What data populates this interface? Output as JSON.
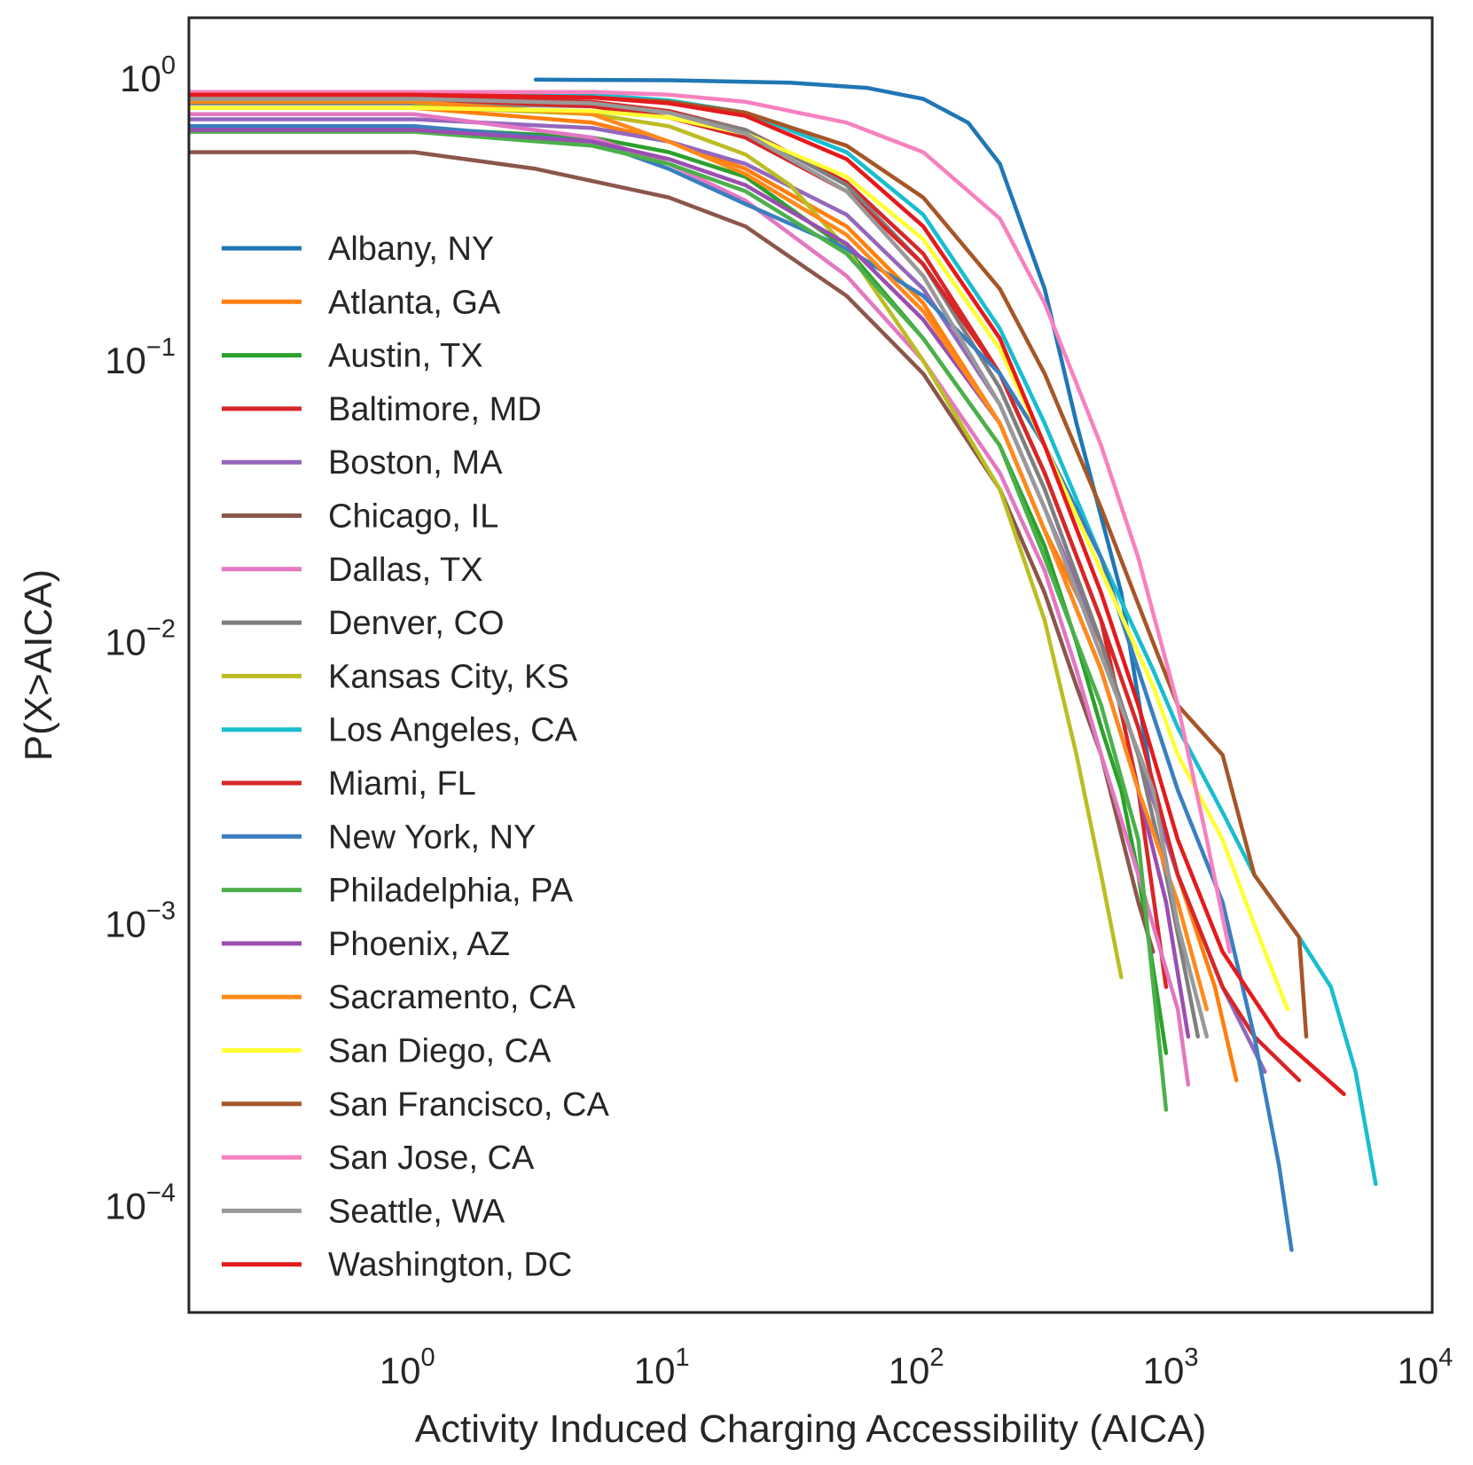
{
  "chart_data": {
    "type": "line",
    "title": "",
    "xlabel": "Activity Induced Charging Accessibility (AICA)",
    "ylabel": "P(X>AICA)",
    "xscale": "log",
    "yscale": "log",
    "xlim": [
      0.13,
      10000
    ],
    "ylim": [
      4.2e-05,
      1.65
    ],
    "xticks": [
      {
        "value": 1,
        "base": "10",
        "exp": "0"
      },
      {
        "value": 10,
        "base": "10",
        "exp": "1"
      },
      {
        "value": 100,
        "base": "10",
        "exp": "2"
      },
      {
        "value": 1000,
        "base": "10",
        "exp": "3"
      },
      {
        "value": 10000,
        "base": "10",
        "exp": "4"
      }
    ],
    "yticks": [
      {
        "value": 1,
        "base": "10",
        "exp": "0"
      },
      {
        "value": 0.1,
        "base": "10",
        "exp": "−1"
      },
      {
        "value": 0.01,
        "base": "10",
        "exp": "−2"
      },
      {
        "value": 0.001,
        "base": "10",
        "exp": "−3"
      },
      {
        "value": 0.0001,
        "base": "10",
        "exp": "−4"
      }
    ],
    "grid": false,
    "legend_position": "center-left",
    "series": [
      {
        "name": "Albany, NY",
        "color": "#1f77b4",
        "x": [
          3,
          10,
          30,
          60,
          100,
          150,
          200,
          300,
          400,
          600,
          800
        ],
        "y": [
          0.995,
          0.99,
          0.97,
          0.93,
          0.85,
          0.7,
          0.5,
          0.18,
          0.06,
          0.015,
          0.003
        ]
      },
      {
        "name": "Atlanta, GA",
        "color": "#ff7f0e",
        "x": [
          0.13,
          1,
          5,
          10,
          20,
          50,
          100,
          200,
          300,
          500,
          700,
          1000,
          1400,
          1700
        ],
        "y": [
          0.79,
          0.79,
          0.7,
          0.6,
          0.48,
          0.3,
          0.16,
          0.06,
          0.025,
          0.01,
          0.004,
          0.0015,
          0.0006,
          0.00028
        ]
      },
      {
        "name": "Austin, TX",
        "color": "#2ca02c",
        "x": [
          0.13,
          1,
          5,
          10,
          20,
          50,
          100,
          200,
          300,
          400,
          500,
          600,
          700,
          800,
          900
        ],
        "y": [
          0.67,
          0.67,
          0.62,
          0.55,
          0.45,
          0.25,
          0.12,
          0.05,
          0.022,
          0.01,
          0.005,
          0.003,
          0.0015,
          0.0007,
          0.00035
        ]
      },
      {
        "name": "Baltimore, MD",
        "color": "#d62728",
        "x": [
          0.13,
          1,
          5,
          10,
          20,
          50,
          100,
          200,
          300,
          500,
          700,
          900
        ],
        "y": [
          0.87,
          0.87,
          0.83,
          0.77,
          0.66,
          0.43,
          0.24,
          0.09,
          0.04,
          0.012,
          0.003,
          0.0006
        ]
      },
      {
        "name": "Boston, MA",
        "color": "#9467bd",
        "x": [
          0.13,
          1,
          5,
          10,
          20,
          50,
          100,
          200,
          300,
          500,
          700,
          1000,
          1500,
          2200
        ],
        "y": [
          0.72,
          0.72,
          0.67,
          0.6,
          0.5,
          0.33,
          0.18,
          0.07,
          0.03,
          0.01,
          0.004,
          0.0015,
          0.0006,
          0.0003
        ]
      },
      {
        "name": "Chicago, IL",
        "color": "#8c564b",
        "x": [
          0.13,
          1,
          3,
          10,
          20,
          50,
          100,
          200,
          300,
          400,
          500,
          700,
          800
        ],
        "y": [
          0.55,
          0.55,
          0.48,
          0.38,
          0.3,
          0.17,
          0.09,
          0.035,
          0.015,
          0.007,
          0.004,
          0.0012,
          0.0008
        ]
      },
      {
        "name": "Dallas, TX",
        "color": "#e377c2",
        "x": [
          0.13,
          1,
          5,
          10,
          20,
          50,
          100,
          200,
          300,
          400,
          500,
          700,
          1000,
          1100
        ],
        "y": [
          0.75,
          0.75,
          0.62,
          0.5,
          0.37,
          0.2,
          0.1,
          0.04,
          0.018,
          0.008,
          0.004,
          0.0015,
          0.0005,
          0.00027
        ]
      },
      {
        "name": "Denver, CO",
        "color": "#7f7f7f",
        "x": [
          0.13,
          1,
          5,
          10,
          20,
          50,
          100,
          200,
          300,
          500,
          700,
          900,
          1100,
          1200
        ],
        "y": [
          0.82,
          0.82,
          0.8,
          0.76,
          0.66,
          0.42,
          0.22,
          0.08,
          0.035,
          0.01,
          0.004,
          0.0015,
          0.0006,
          0.0004
        ]
      },
      {
        "name": "Kansas City, KS",
        "color": "#bcbd22",
        "x": [
          1,
          5,
          10,
          20,
          30,
          50,
          100,
          200,
          300,
          400,
          500,
          600
        ],
        "y": [
          0.8,
          0.75,
          0.68,
          0.54,
          0.42,
          0.25,
          0.1,
          0.035,
          0.012,
          0.004,
          0.0015,
          0.00065
        ]
      },
      {
        "name": "Los Angeles, CA",
        "color": "#17becf",
        "x": [
          0.13,
          1,
          5,
          10,
          20,
          50,
          100,
          200,
          300,
          500,
          800,
          1000,
          1500,
          2000,
          3000,
          4000,
          5000,
          6000
        ],
        "y": [
          0.9,
          0.9,
          0.88,
          0.84,
          0.76,
          0.55,
          0.33,
          0.13,
          0.06,
          0.02,
          0.008,
          0.005,
          0.0025,
          0.0015,
          0.0009,
          0.0006,
          0.0003,
          0.00012
        ]
      },
      {
        "name": "Miami, FL",
        "color": "#d62728",
        "x": [
          0.13,
          1,
          5,
          10,
          20,
          50,
          100,
          200,
          300,
          500,
          700,
          1000,
          1500,
          2000,
          3000
        ],
        "y": [
          0.85,
          0.85,
          0.8,
          0.73,
          0.62,
          0.4,
          0.22,
          0.09,
          0.04,
          0.012,
          0.005,
          0.0015,
          0.0006,
          0.0004,
          0.00028
        ]
      },
      {
        "name": "New York, NY",
        "color": "#3a7fbf",
        "x": [
          0.13,
          1,
          5,
          10,
          20,
          50,
          100,
          200,
          300,
          500,
          700,
          1000,
          1500,
          2000,
          2500,
          2800
        ],
        "y": [
          0.68,
          0.68,
          0.6,
          0.48,
          0.36,
          0.25,
          0.17,
          0.09,
          0.05,
          0.02,
          0.008,
          0.003,
          0.0012,
          0.0004,
          0.00014,
          7e-05
        ]
      },
      {
        "name": "Philadelphia, PA",
        "color": "#4bb04b",
        "x": [
          0.13,
          1,
          5,
          10,
          20,
          50,
          100,
          200,
          300,
          500,
          700,
          900
        ],
        "y": [
          0.65,
          0.65,
          0.58,
          0.5,
          0.4,
          0.24,
          0.12,
          0.05,
          0.02,
          0.006,
          0.002,
          0.00022
        ]
      },
      {
        "name": "Phoenix, AZ",
        "color": "#9a4fb0",
        "x": [
          0.13,
          1,
          5,
          10,
          20,
          50,
          100,
          200,
          300,
          500,
          700,
          900,
          1100
        ],
        "y": [
          0.66,
          0.66,
          0.6,
          0.52,
          0.42,
          0.26,
          0.14,
          0.06,
          0.025,
          0.008,
          0.003,
          0.0012,
          0.0004
        ]
      },
      {
        "name": "Sacramento, CA",
        "color": "#ff8a1a",
        "x": [
          0.13,
          1,
          5,
          10,
          20,
          50,
          100,
          200,
          300,
          500,
          700,
          1000,
          1300
        ],
        "y": [
          0.83,
          0.83,
          0.75,
          0.6,
          0.46,
          0.28,
          0.15,
          0.06,
          0.025,
          0.008,
          0.003,
          0.0012,
          0.0005
        ]
      },
      {
        "name": "San Diego, CA",
        "color": "#ffff33",
        "x": [
          0.13,
          1,
          5,
          10,
          20,
          50,
          100,
          200,
          300,
          500,
          800,
          1000,
          1500,
          2000,
          2700
        ],
        "y": [
          0.79,
          0.79,
          0.77,
          0.73,
          0.64,
          0.45,
          0.27,
          0.11,
          0.05,
          0.018,
          0.007,
          0.004,
          0.002,
          0.001,
          0.0005
        ]
      },
      {
        "name": "San Francisco, CA",
        "color": "#a65628",
        "x": [
          0.13,
          1,
          5,
          10,
          20,
          50,
          100,
          200,
          300,
          500,
          800,
          1000,
          1500,
          2000,
          3000,
          3200
        ],
        "y": [
          0.88,
          0.88,
          0.86,
          0.83,
          0.76,
          0.58,
          0.38,
          0.18,
          0.09,
          0.03,
          0.01,
          0.006,
          0.004,
          0.0015,
          0.0009,
          0.0004
        ]
      },
      {
        "name": "San Jose, CA",
        "color": "#f781bf",
        "x": [
          0.13,
          1,
          5,
          10,
          20,
          50,
          100,
          200,
          300,
          500,
          700,
          1000,
          1300,
          1600
        ],
        "y": [
          0.9,
          0.9,
          0.9,
          0.88,
          0.83,
          0.7,
          0.55,
          0.32,
          0.16,
          0.05,
          0.02,
          0.006,
          0.002,
          0.0008
        ]
      },
      {
        "name": "Seattle, WA",
        "color": "#999999",
        "x": [
          0.13,
          1,
          5,
          10,
          20,
          50,
          100,
          200,
          300,
          500,
          800,
          1000,
          1300
        ],
        "y": [
          0.85,
          0.85,
          0.82,
          0.76,
          0.64,
          0.4,
          0.2,
          0.07,
          0.03,
          0.009,
          0.003,
          0.001,
          0.0004
        ]
      },
      {
        "name": "Washington, DC",
        "color": "#e41a1c",
        "x": [
          0.13,
          1,
          5,
          10,
          20,
          50,
          100,
          200,
          300,
          500,
          700,
          1000,
          1500,
          2500,
          4500
        ],
        "y": [
          0.88,
          0.88,
          0.86,
          0.82,
          0.74,
          0.52,
          0.3,
          0.12,
          0.05,
          0.015,
          0.006,
          0.002,
          0.0008,
          0.0004,
          0.00025
        ]
      }
    ]
  }
}
